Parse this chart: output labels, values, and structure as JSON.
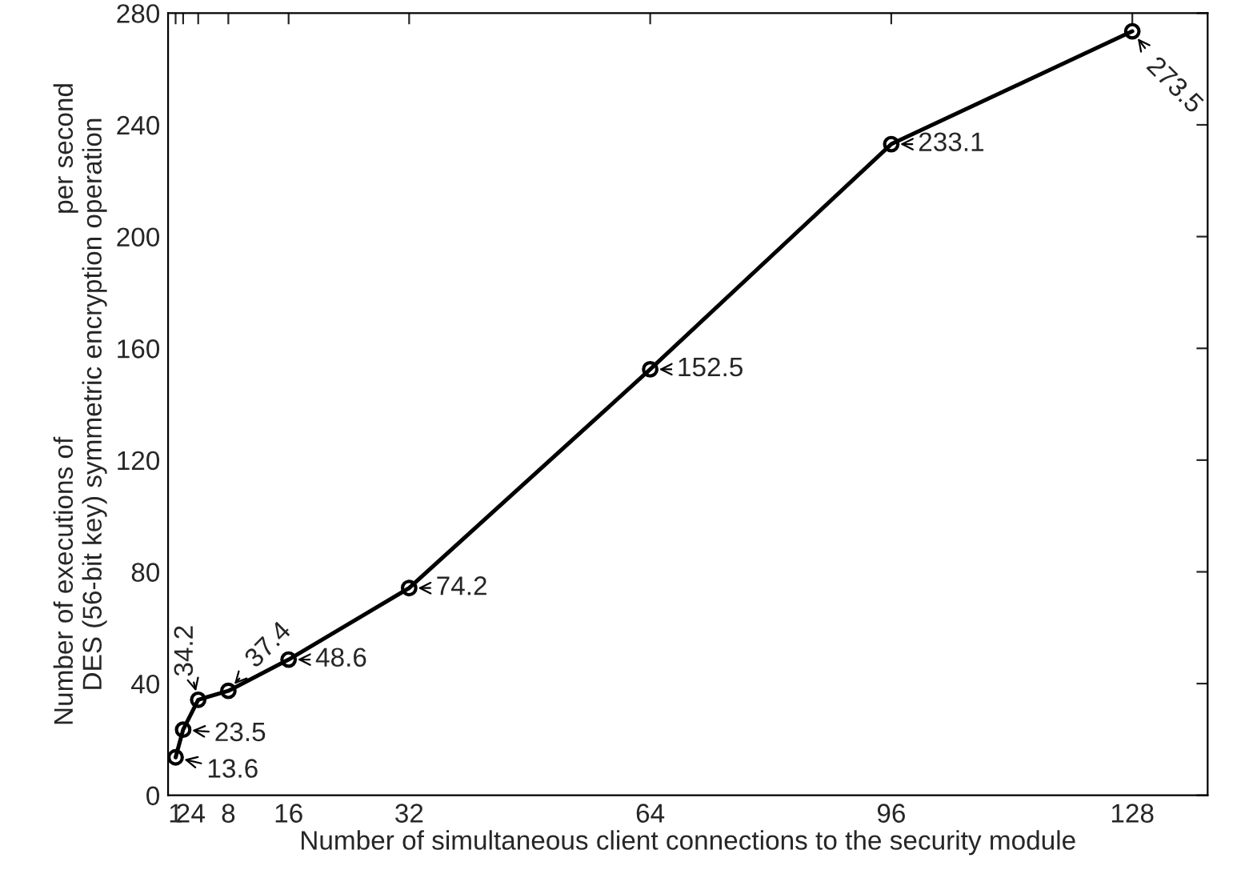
{
  "chart_data": {
    "type": "line",
    "xlabel": "Number of simultaneous client connections to the security module",
    "ylabel": "Number of executions of                              per second\nDES (56-bit key) symmetric encryption operation",
    "x": [
      1,
      2,
      4,
      8,
      16,
      32,
      64,
      96,
      128
    ],
    "series": [
      {
        "color": "#000000",
        "values": [
          13.6,
          23.5,
          34.2,
          37.4,
          48.6,
          74.2,
          152.5,
          233.1,
          273.5
        ],
        "value_labels": [
          "13.6",
          "23.5",
          "34.2",
          "37.4",
          "48.6",
          "74.2",
          "152.5",
          "233.1",
          "273.5"
        ]
      }
    ],
    "xlim": [
      0,
      138
    ],
    "xticks": [
      1,
      2,
      4,
      8,
      16,
      32,
      64,
      96,
      128
    ],
    "ylim": [
      0,
      280
    ],
    "yticks": [
      0,
      40,
      80,
      120,
      160,
      200,
      240,
      280
    ],
    "marker": "circle",
    "line_style": "solid",
    "grid": false,
    "legend": false
  }
}
